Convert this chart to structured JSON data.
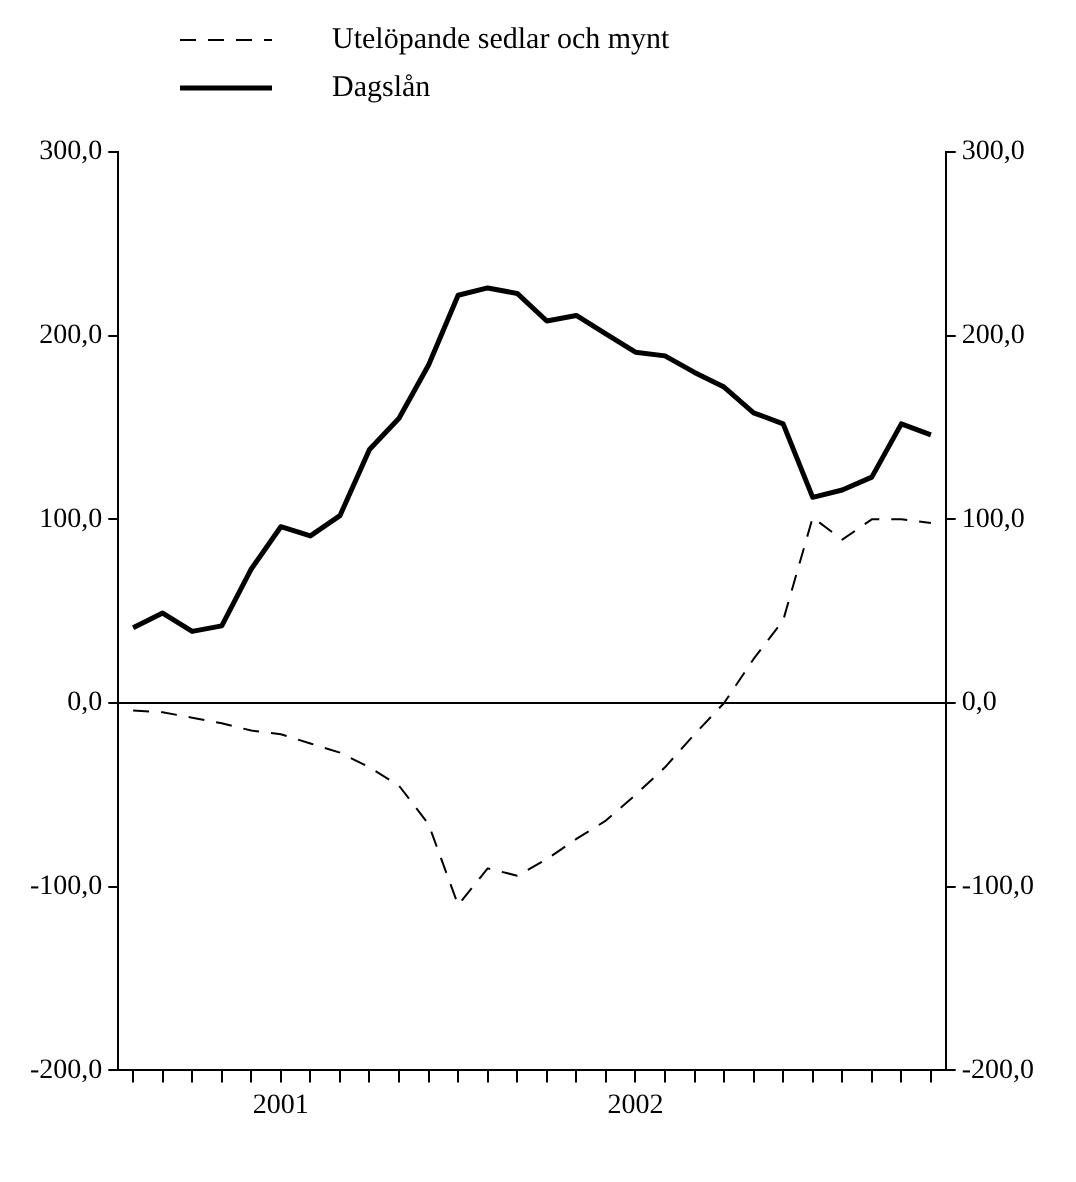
{
  "chart_data": {
    "type": "line",
    "categories": [
      null,
      null,
      null,
      null,
      null,
      "2001",
      null,
      null,
      null,
      null,
      null,
      null,
      null,
      null,
      null,
      null,
      null,
      "2002",
      null,
      null,
      null,
      null,
      null,
      null,
      null,
      null,
      null,
      null
    ],
    "series": [
      {
        "name": "Utelöpande sedlar och mynt",
        "color": "#000000",
        "line_style": "dashed",
        "values": [
          -4,
          -5,
          -8,
          -11,
          -15,
          -17,
          -22,
          -27,
          -35,
          -45,
          -66,
          -110,
          -90,
          -94,
          -85,
          -74,
          -64,
          -50,
          -35,
          -17,
          0,
          24,
          45,
          101,
          89,
          100,
          100,
          98
        ]
      },
      {
        "name": "Dagslån",
        "color": "#000000",
        "line_style": "solid",
        "values": [
          41,
          49,
          39,
          42,
          73,
          96,
          91,
          102,
          138,
          155,
          184,
          222,
          226,
          223,
          208,
          211,
          201,
          191,
          189,
          180,
          172,
          158,
          152,
          112,
          116,
          123,
          152,
          146
        ]
      }
    ],
    "ylim": [
      -200,
      300
    ],
    "yticks": [
      {
        "value": -200,
        "label": "-200,0"
      },
      {
        "value": -100,
        "label": "-100,0"
      },
      {
        "value": 0,
        "label": "0,0"
      },
      {
        "value": 100,
        "label": "100,0"
      },
      {
        "value": 200,
        "label": "200,0"
      },
      {
        "value": 300,
        "label": "300,0"
      }
    ],
    "y2lim": [
      -200,
      300
    ],
    "y2ticks": [
      {
        "value": -200,
        "label": "-200,0"
      },
      {
        "value": -100,
        "label": "-100,0"
      },
      {
        "value": 0,
        "label": "0,0"
      },
      {
        "value": 100,
        "label": "100,0"
      },
      {
        "value": 200,
        "label": "200,0"
      },
      {
        "value": 300,
        "label": "300,0"
      }
    ],
    "ref_lines": [
      {
        "axis": "y",
        "value": 0,
        "color": "#000000"
      }
    ],
    "grid": false,
    "legend": "top",
    "marker": "none"
  }
}
